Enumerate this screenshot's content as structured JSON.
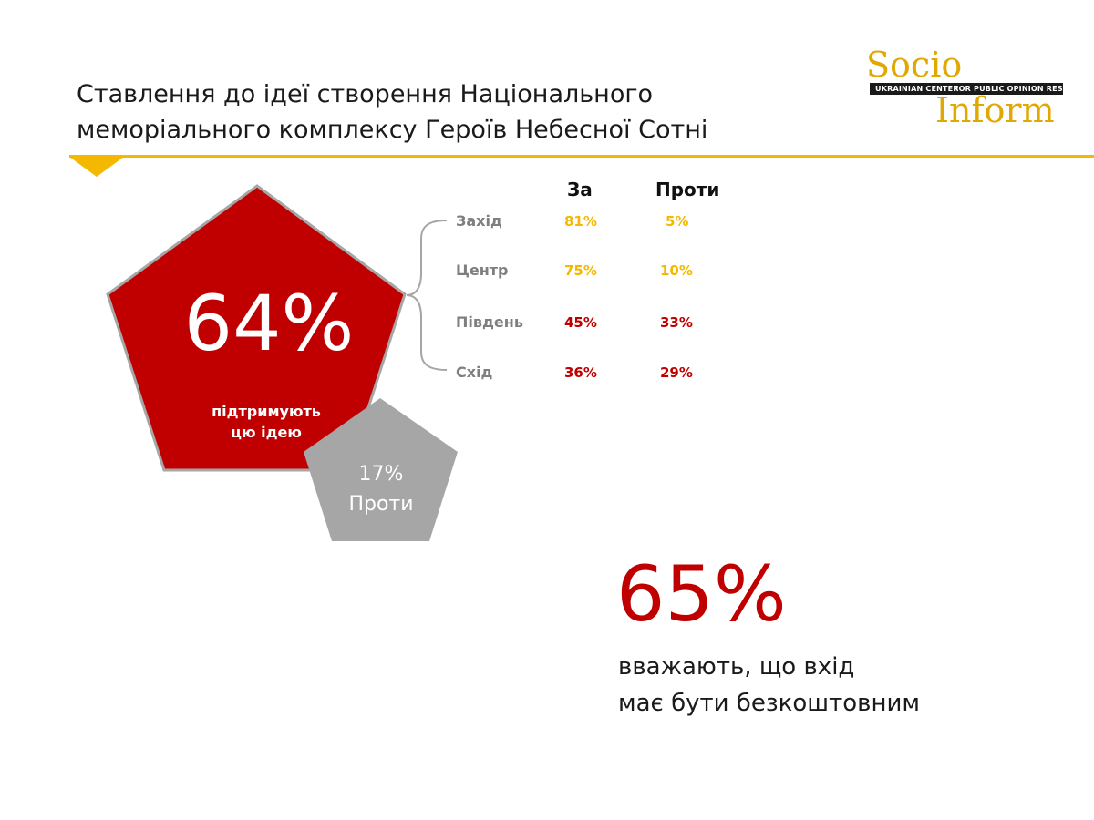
{
  "header": {
    "title_line1": "Ставлення до ідеї створення Національного",
    "title_line2": "меморіального комплексу Героїв Небесної Сотні"
  },
  "logo": {
    "word_top": "Socio",
    "word_bottom": "Inform",
    "bar_left": "UKRAINIAN CENTER",
    "bar_right": "FOR PUBLIC OPINION RESEARCH",
    "color": "#e0a800"
  },
  "support": {
    "percent": "64%",
    "label_line1": "підтримують",
    "label_line2": "цю ідею",
    "color": "#c00000"
  },
  "against": {
    "percent": "17%",
    "label": "Проти",
    "color": "#a6a6a6"
  },
  "regions_table": {
    "headers": {
      "for": "За",
      "against": "Проти"
    },
    "rows": [
      {
        "region": "Захід",
        "for": "81%",
        "against": "5%",
        "color": "yellow"
      },
      {
        "region": "Центр",
        "for": "75%",
        "against": "10%",
        "color": "yellow"
      },
      {
        "region": "Південь",
        "for": "45%",
        "against": "33%",
        "color": "red"
      },
      {
        "region": "Схід",
        "for": "36%",
        "against": "29%",
        "color": "red"
      }
    ]
  },
  "free_entry": {
    "percent": "65%",
    "text_line1": "вважають, що вхід",
    "text_line2": "має бути безкоштовним"
  },
  "colors": {
    "accent_yellow": "#f5b800",
    "accent_red": "#c00000",
    "gray": "#a6a6a6"
  }
}
